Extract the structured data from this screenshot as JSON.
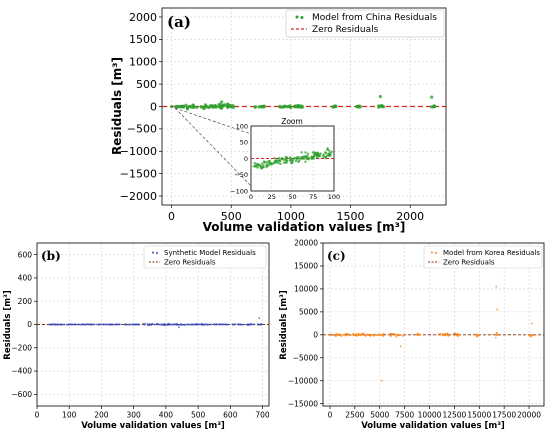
{
  "chart_data": [
    {
      "panel": "(a)",
      "type": "scatter",
      "xlabel": "Volume validation values [m³]",
      "ylabel": "Residuals [m³]",
      "xlim": [
        -80,
        2300
      ],
      "ylim": [
        -2200,
        2200
      ],
      "xticks": [
        "0",
        "500",
        "1000",
        "1500",
        "2000"
      ],
      "yticks": [
        "2000",
        "1500",
        "1000",
        "500",
        "0",
        "−500",
        "−1000",
        "−1500",
        "−2000"
      ],
      "grid": true,
      "legend_position": "top-right",
      "series": [
        {
          "name": "Model from China Residuals",
          "color": "#2ca02c",
          "marker": "dot",
          "clusters": [
            [
              0,
              110,
              20
            ],
            [
              100,
              520,
              60
            ],
            [
              700,
              780,
              30
            ],
            [
              900,
              1100,
              30
            ],
            [
              1350,
              1380,
              20
            ],
            [
              1550,
              1600,
              20
            ],
            [
              1730,
              1780,
              40
            ],
            [
              2170,
              2210,
              30
            ]
          ],
          "outliers": [
            [
              1750,
              220
            ],
            [
              2180,
              210
            ],
            [
              420,
              100
            ]
          ]
        }
      ],
      "reference_line": {
        "name": "Zero Residuals",
        "y": 0,
        "color": "#d62728",
        "style": "dashed"
      },
      "inset": {
        "title": "Zoom",
        "xlim": [
          0,
          100
        ],
        "ylim": [
          -100,
          100
        ],
        "xticks": [
          "0",
          "25",
          "50",
          "75",
          "100"
        ],
        "yticks": [
          "100",
          "50",
          "0",
          "−50",
          "−100"
        ]
      }
    },
    {
      "panel": "(b)",
      "type": "scatter",
      "xlabel": "Volume validation values [m³]",
      "ylabel": "Residuals [m³]",
      "xlim": [
        0,
        720
      ],
      "ylim": [
        -700,
        700
      ],
      "xticks": [
        "0",
        "100",
        "200",
        "300",
        "400",
        "500",
        "600",
        "700"
      ],
      "yticks": [
        "600",
        "400",
        "200",
        "0",
        "−200",
        "−400",
        "−600"
      ],
      "grid": true,
      "legend_position": "top-right",
      "series": [
        {
          "name": "Synthetic Model Residuals",
          "color": "#3b4cc0",
          "marker": "dot",
          "clusters": [
            [
              40,
              320,
              3
            ],
            [
              330,
              460,
              10
            ],
            [
              460,
              700,
              6
            ]
          ],
          "outliers": [
            [
              690,
              55
            ],
            [
              440,
              -25
            ]
          ]
        }
      ],
      "reference_line": {
        "name": "Zero Residuals",
        "y": 0,
        "color": "#8c2d04",
        "style": "dashed"
      }
    },
    {
      "panel": "(c)",
      "type": "scatter",
      "xlabel": "Volume validation values [m³]",
      "ylabel": "Residuals [m³]",
      "xlim": [
        -700,
        21500
      ],
      "ylim": [
        -15500,
        20000
      ],
      "xticks": [
        "0",
        "2500",
        "5000",
        "7500",
        "10000",
        "12500",
        "15000",
        "17500",
        "20000"
      ],
      "yticks": [
        "20000",
        "15000",
        "10000",
        "5000",
        "0",
        "−5000",
        "−10000",
        "−15000"
      ],
      "grid": true,
      "legend_position": "top-right",
      "series": [
        {
          "name": "Model from Korea Residuals",
          "color": "#ff7f0e",
          "marker": "dot",
          "clusters": [
            [
              0,
              5500,
              400
            ],
            [
              6000,
              7500,
              600
            ],
            [
              8500,
              9000,
              500
            ],
            [
              11000,
              13000,
              500
            ],
            [
              14500,
              15000,
              600
            ],
            [
              16500,
              17000,
              800
            ],
            [
              20000,
              20500,
              700
            ]
          ],
          "outliers": [
            [
              5200,
              -10000
            ],
            [
              16700,
              10500
            ],
            [
              16800,
              5500
            ],
            [
              7100,
              -2500
            ],
            [
              20300,
              2500
            ]
          ]
        }
      ],
      "reference_line": {
        "name": "Zero Residuals",
        "y": 0,
        "color": "#8c2d04",
        "style": "dashed"
      }
    }
  ]
}
